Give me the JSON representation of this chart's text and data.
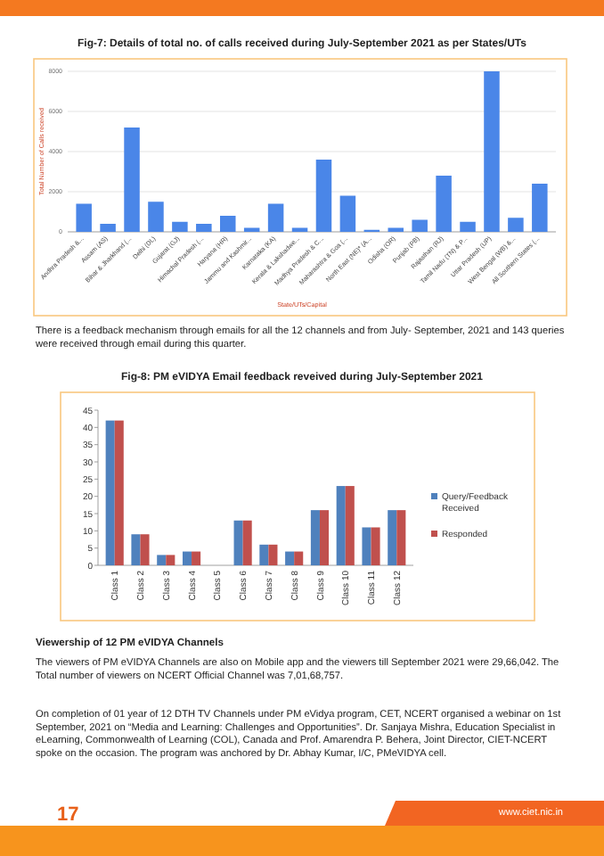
{
  "chart_data": [
    {
      "type": "bar",
      "title": "Fig-7: Details of total no. of calls received during July-September 2021 as per States/UTs",
      "xlabel": "State/UTs/Capital",
      "ylabel": "Total Number of Calls received",
      "categories": [
        "Andhra Pradesh &...",
        "Assam (AS)",
        "Bihar & Jharkhand (...",
        "Delhi (DL)",
        "Gujarat (GJ)",
        "Himachal Pradesh (...",
        "Haryana (HR)",
        "Jammu and Kashmir...",
        "Karnataka (KA)",
        "Kerala & Lakshadwe...",
        "Madhya Pradesh & C...",
        "Maharashtra & Goa (...",
        "North East (NE)* (A...",
        "Odisha (OR)",
        "Punjab (PB)",
        "Rajasthan (RJ)",
        "Tamil Nadu (TN) & P...",
        "Uttar Pradesh (UP)",
        "West Bengal (WB) &...",
        "All Southern States (..."
      ],
      "values": [
        1400,
        400,
        5200,
        1500,
        500,
        400,
        800,
        200,
        1400,
        200,
        3600,
        1800,
        100,
        200,
        600,
        2800,
        500,
        8000,
        700,
        2400
      ],
      "color": "#4a86e8",
      "ylim": [
        0,
        8000
      ],
      "yticks": [
        0,
        2000,
        4000,
        6000,
        8000
      ],
      "grid": "y",
      "annotations": [
        "There is a feedback mechanism through emails for all the 12 channels and from July- September, 2021 and 143 queries were received through email during this quarter."
      ]
    },
    {
      "type": "bar",
      "title": "Fig-8: PM eVIDYA Email feedback reveived during  July-September 2021",
      "categories": [
        "Class 1",
        "Class 2",
        "Class 3",
        "Class 4",
        "Class 5",
        "Class 6",
        "Class 7",
        "Class 8",
        "Class 9",
        "Class 10",
        "Class 11",
        "Class 12"
      ],
      "series": [
        {
          "name": "Query/Feedback Received",
          "color": "#4f81bd",
          "values": [
            42,
            9,
            3,
            4,
            0,
            13,
            6,
            4,
            16,
            23,
            11,
            16
          ]
        },
        {
          "name": "Responded",
          "color": "#c0504d",
          "values": [
            42,
            9,
            3,
            4,
            0,
            13,
            6,
            4,
            16,
            23,
            11,
            16
          ]
        }
      ],
      "ylim": [
        0,
        45
      ],
      "yticks": [
        0,
        5,
        10,
        15,
        20,
        25,
        30,
        35,
        40,
        45
      ],
      "legend": "right",
      "annotations": [
        "Viewership of 12 PM eVIDYA Channels",
        "The viewers of PM eVIDYA Channels are also on Mobile app and the viewers till September 2021 were 29,66,042. The Total number of viewers on NCERT Official Channel was 7,01,68,757.",
        "On completion of 01 year of 12 DTH TV Channels under PM eVidya program, CET, NCERT organised a webinar on 1st September, 2021 on “Media and Learning: Challenges and Opportunities”. Dr. Sanjaya Mishra, Education Specialist in eLearning, Commonwealth of Learning (COL), Canada and Prof. Amarendra P. Behera, Joint Director, CIET-NCERT spoke on the occasion. The program was anchored by Dr. Abhay Kumar, I/C, PMeVIDYA cell.",
        "17",
        "www.ciet.nic.in"
      ]
    }
  ]
}
